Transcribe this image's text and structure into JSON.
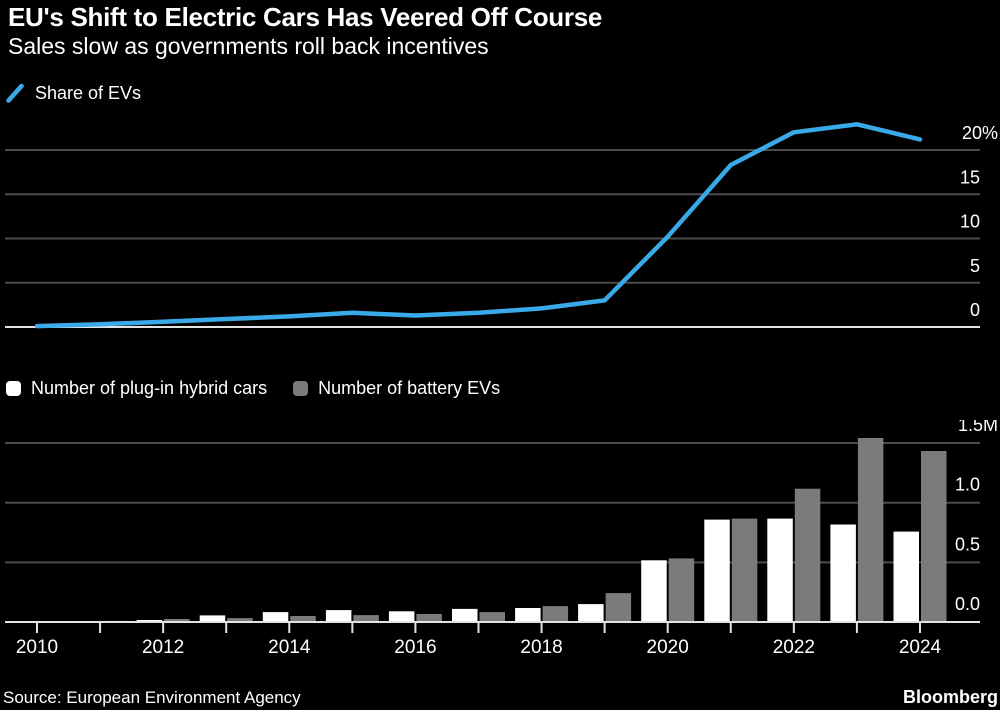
{
  "header": {
    "title": "EU's Shift to Electric Cars Has Veered Off Course",
    "subtitle": "Sales slow as governments roll back incentives"
  },
  "footer": {
    "source": "Source: European Environment Agency",
    "brand": "Bloomberg"
  },
  "colors": {
    "background": "#000000",
    "text": "#ffffff",
    "accent_blue": "#3aa9e8",
    "bar_white": "#ffffff",
    "bar_gray": "#7b7b7b",
    "gridline": "#4b4b4b",
    "axis_line": "#e2e2e2"
  },
  "chart_data": [
    {
      "type": "line",
      "title": "Share of EVs",
      "x": [
        2010,
        2011,
        2012,
        2013,
        2014,
        2015,
        2016,
        2017,
        2018,
        2019,
        2020,
        2021,
        2022,
        2023,
        2024
      ],
      "series": [
        {
          "name": "Share of EVs",
          "color": "#3aa9e8",
          "values": [
            0.1,
            0.3,
            0.6,
            0.9,
            1.2,
            1.6,
            1.3,
            1.6,
            2.1,
            3.0,
            10.2,
            18.3,
            22.0,
            22.9,
            21.2
          ]
        }
      ],
      "unit": "%",
      "ylim": [
        0,
        24.5
      ],
      "yticks": {
        "values": [
          0,
          5,
          10,
          15,
          20
        ],
        "labels": [
          "0",
          "5",
          "10",
          "15",
          "20%"
        ]
      },
      "grid": true,
      "legend_position": "top-left"
    },
    {
      "type": "bar",
      "categories": [
        2010,
        2011,
        2012,
        2013,
        2014,
        2015,
        2016,
        2017,
        2018,
        2019,
        2020,
        2021,
        2022,
        2023,
        2024
      ],
      "series": [
        {
          "name": "Number of plug-in hybrid cars",
          "color": "#ffffff",
          "values": [
            0.001,
            0.005,
            0.017,
            0.055,
            0.083,
            0.1,
            0.09,
            0.11,
            0.117,
            0.15,
            0.517,
            0.858,
            0.867,
            0.817,
            0.758
          ]
        },
        {
          "name": "Number of battery EVs",
          "color": "#7b7b7b",
          "values": [
            0.002,
            0.009,
            0.025,
            0.033,
            0.05,
            0.058,
            0.067,
            0.083,
            0.133,
            0.242,
            0.533,
            0.867,
            1.117,
            1.542,
            1.433
          ]
        }
      ],
      "unit": "M",
      "ylim": [
        0,
        1.68
      ],
      "yticks": {
        "values": [
          0,
          0.5,
          1.0,
          1.5
        ],
        "labels": [
          "0.0",
          "0.5",
          "1.0",
          "1.5M"
        ]
      },
      "xticks": {
        "values": [
          2010,
          2012,
          2014,
          2016,
          2018,
          2020,
          2022,
          2024
        ],
        "labels": [
          "2010",
          "2012",
          "2014",
          "2016",
          "2018",
          "2020",
          "2022",
          "2024"
        ]
      },
      "grid": true,
      "legend_position": "top-left"
    }
  ]
}
